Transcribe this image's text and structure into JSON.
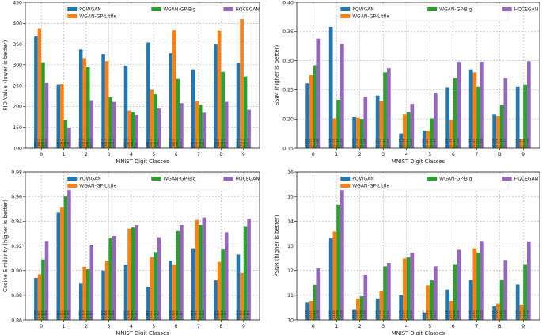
{
  "chart_data": [
    {
      "type": "bar",
      "panel": "top-left",
      "xlabel": "MNIST Digit Classes",
      "ylabel": "FID Value (lower is better)",
      "ylim": [
        100,
        450
      ],
      "yticks": [
        "100",
        "150",
        "200",
        "250",
        "300",
        "350",
        "400",
        "450"
      ],
      "categories": [
        "0",
        "1",
        "2",
        "3",
        "4",
        "5",
        "6",
        "7",
        "8",
        "9"
      ],
      "legend_position": "top",
      "series": [
        {
          "name": "PQWGAN",
          "color": "#1f77b4",
          "values": [
            368,
            253,
            337,
            326,
            298,
            354,
            328,
            289,
            349,
            305
          ]
        },
        {
          "name": "WGAN-GP-Little",
          "color": "#ff7f0e",
          "values": [
            388,
            254,
            316,
            309,
            190,
            240,
            383,
            212,
            382,
            410
          ]
        },
        {
          "name": "WGAN-GP-Big",
          "color": "#2ca02c",
          "values": [
            306,
            168,
            296,
            222,
            186,
            229,
            266,
            204,
            283,
            272
          ]
        },
        {
          "name": "HQCEGAN",
          "color": "#9467bd",
          "values": [
            256,
            149,
            215,
            211,
            180,
            195,
            208,
            185,
            211,
            192
          ]
        }
      ]
    },
    {
      "type": "bar",
      "panel": "top-right",
      "xlabel": "MNIST Digit Classes",
      "ylabel": "SSIM (higher is better)",
      "ylim": [
        0.15,
        0.4
      ],
      "yticks": [
        "0.15",
        "0.20",
        "0.25",
        "0.30",
        "0.35",
        "0.40"
      ],
      "categories": [
        "0",
        "1",
        "2",
        "3",
        "4",
        "5",
        "6",
        "7",
        "8",
        "9"
      ],
      "legend_position": "top",
      "series": [
        {
          "name": "PQWGAN",
          "color": "#1f77b4",
          "values": [
            0.261,
            0.358,
            0.203,
            0.24,
            0.175,
            0.18,
            0.254,
            0.285,
            0.208,
            0.255
          ]
        },
        {
          "name": "WGAN-GP-Little",
          "color": "#ff7f0e",
          "values": [
            0.275,
            0.201,
            0.202,
            0.231,
            0.208,
            0.18,
            0.198,
            0.28,
            0.205,
            0.165
          ]
        },
        {
          "name": "WGAN-GP-Big",
          "color": "#2ca02c",
          "values": [
            0.292,
            0.233,
            0.2,
            0.28,
            0.211,
            0.201,
            0.27,
            0.255,
            0.224,
            0.259
          ]
        },
        {
          "name": "HQCEGAN",
          "color": "#9467bd",
          "values": [
            0.338,
            0.329,
            0.238,
            0.287,
            0.226,
            0.244,
            0.298,
            0.298,
            0.27,
            0.299
          ]
        }
      ]
    },
    {
      "type": "bar",
      "panel": "bottom-left",
      "xlabel": "MNIST Digit Classes",
      "ylabel": "Cosine Similarity (higher is better)",
      "ylim": [
        0.86,
        0.98
      ],
      "yticks": [
        "0.86",
        "0.88",
        "0.90",
        "0.92",
        "0.94",
        "0.96",
        "0.98"
      ],
      "categories": [
        "0",
        "1",
        "2",
        "3",
        "4",
        "5",
        "6",
        "7",
        "8",
        "9"
      ],
      "legend_position": "top",
      "series": [
        {
          "name": "PQWGAN",
          "color": "#1f77b4",
          "values": [
            0.894,
            0.947,
            0.89,
            0.9,
            0.905,
            0.887,
            0.908,
            0.918,
            0.892,
            0.913
          ]
        },
        {
          "name": "WGAN-GP-Little",
          "color": "#ff7f0e",
          "values": [
            0.897,
            0.951,
            0.903,
            0.908,
            0.934,
            0.911,
            0.905,
            0.941,
            0.907,
            0.898
          ]
        },
        {
          "name": "WGAN-GP-Big",
          "color": "#2ca02c",
          "values": [
            0.909,
            0.96,
            0.901,
            0.926,
            0.935,
            0.915,
            0.932,
            0.937,
            0.917,
            0.936
          ]
        },
        {
          "name": "HQCEGAN",
          "color": "#9467bd",
          "values": [
            0.924,
            0.968,
            0.921,
            0.928,
            0.937,
            0.927,
            0.937,
            0.943,
            0.931,
            0.942
          ]
        }
      ]
    },
    {
      "type": "bar",
      "panel": "bottom-right",
      "xlabel": "MNIST Digit Classes",
      "ylabel": "PSNR (higher is better)",
      "ylim": [
        10,
        16
      ],
      "yticks": [
        "10",
        "11",
        "12",
        "13",
        "14",
        "15",
        "16"
      ],
      "categories": [
        "0",
        "1",
        "2",
        "3",
        "4",
        "5",
        "6",
        "7",
        "8",
        "9"
      ],
      "legend_position": "top",
      "series": [
        {
          "name": "PQWGAN",
          "color": "#1f77b4",
          "values": [
            10.73,
            13.3,
            10.43,
            10.87,
            11.02,
            10.3,
            11.23,
            11.62,
            10.55,
            11.43
          ]
        },
        {
          "name": "WGAN-GP-Little",
          "color": "#ff7f0e",
          "values": [
            10.77,
            13.58,
            10.87,
            11.16,
            12.49,
            11.4,
            10.77,
            12.9,
            10.66,
            10.61
          ]
        },
        {
          "name": "WGAN-GP-Big",
          "color": "#2ca02c",
          "values": [
            11.42,
            14.66,
            10.96,
            12.17,
            12.53,
            11.6,
            12.26,
            12.73,
            11.62,
            12.26
          ]
        },
        {
          "name": "HQCEGAN",
          "color": "#9467bd",
          "values": [
            12.09,
            15.28,
            11.83,
            12.31,
            12.72,
            12.17,
            12.84,
            13.2,
            12.43,
            13.18
          ]
        }
      ]
    }
  ]
}
